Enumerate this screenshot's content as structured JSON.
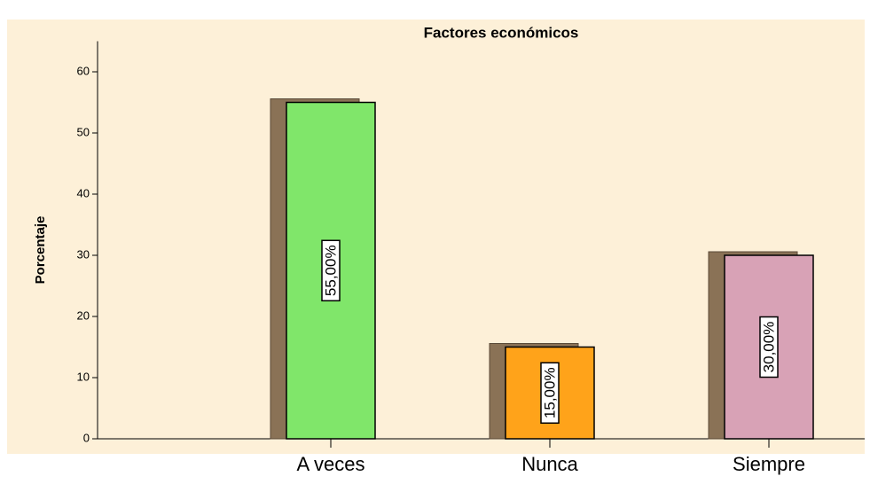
{
  "chart_data": {
    "type": "bar",
    "title": "Factores económicos",
    "ylabel": "Porcentaje",
    "categories": [
      "A veces",
      "Nunca",
      "Siempre"
    ],
    "values": [
      55,
      15,
      30
    ],
    "value_labels": [
      "55,00%",
      "15,00%",
      "30,00%"
    ],
    "colors": [
      "#80e66a",
      "#ffa31a",
      "#d8a2b6"
    ],
    "ylim": [
      0,
      65
    ],
    "yticks": [
      0,
      10,
      20,
      30,
      40,
      50,
      60
    ],
    "grid": false
  }
}
